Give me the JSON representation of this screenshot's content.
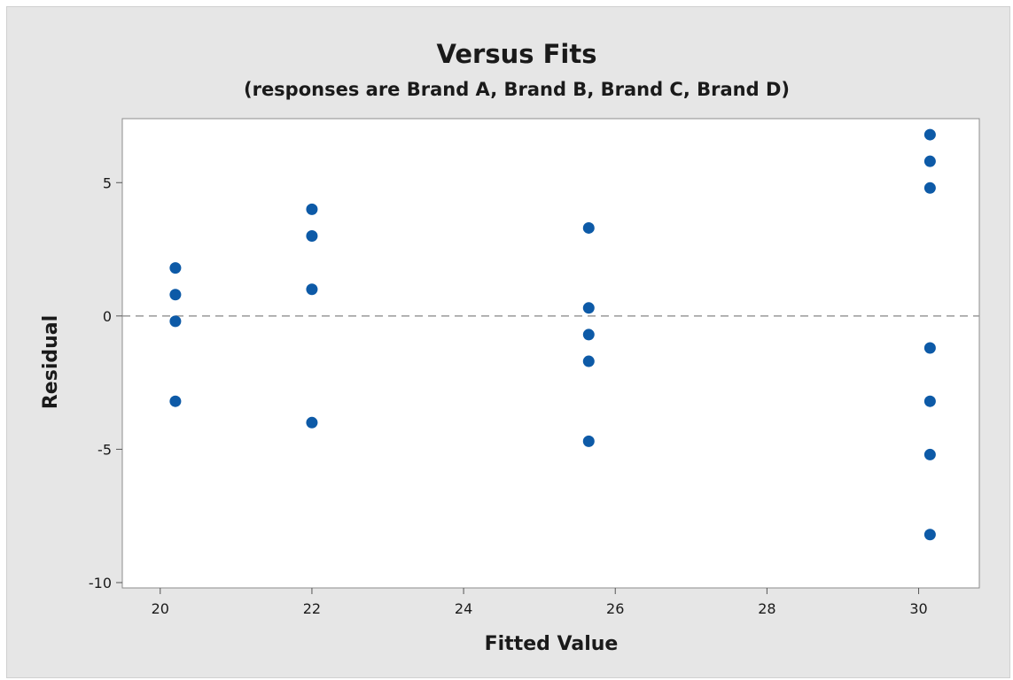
{
  "chart_data": {
    "type": "scatter",
    "title": "Versus Fits",
    "subtitle": "(responses are Brand A, Brand B, Brand C, Brand D)",
    "xlabel": "Fitted Value",
    "ylabel": "Residual",
    "xlim": [
      19.5,
      30.8
    ],
    "ylim": [
      -10.2,
      7.4
    ],
    "xticks": [
      20,
      22,
      24,
      26,
      28,
      30
    ],
    "yticks": [
      -10,
      -5,
      0,
      5
    ],
    "reference_line": {
      "y": 0,
      "style": "dashed"
    },
    "grid": false,
    "marker_color": "#0d5aa7",
    "series": [
      {
        "points": [
          {
            "x": 20.2,
            "y": 1.8
          },
          {
            "x": 20.2,
            "y": 0.8
          },
          {
            "x": 20.2,
            "y": -0.2
          },
          {
            "x": 20.2,
            "y": -3.2
          },
          {
            "x": 22.0,
            "y": 4.0
          },
          {
            "x": 22.0,
            "y": 3.0
          },
          {
            "x": 22.0,
            "y": 1.0
          },
          {
            "x": 22.0,
            "y": -4.0
          },
          {
            "x": 25.65,
            "y": 3.3
          },
          {
            "x": 25.65,
            "y": 0.3
          },
          {
            "x": 25.65,
            "y": -0.7
          },
          {
            "x": 25.65,
            "y": -1.7
          },
          {
            "x": 25.65,
            "y": -4.7
          },
          {
            "x": 30.15,
            "y": 6.8
          },
          {
            "x": 30.15,
            "y": 5.8
          },
          {
            "x": 30.15,
            "y": 4.8
          },
          {
            "x": 30.15,
            "y": -1.2
          },
          {
            "x": 30.15,
            "y": -3.2
          },
          {
            "x": 30.15,
            "y": -5.2
          },
          {
            "x": 30.15,
            "y": -8.2
          }
        ]
      }
    ]
  }
}
